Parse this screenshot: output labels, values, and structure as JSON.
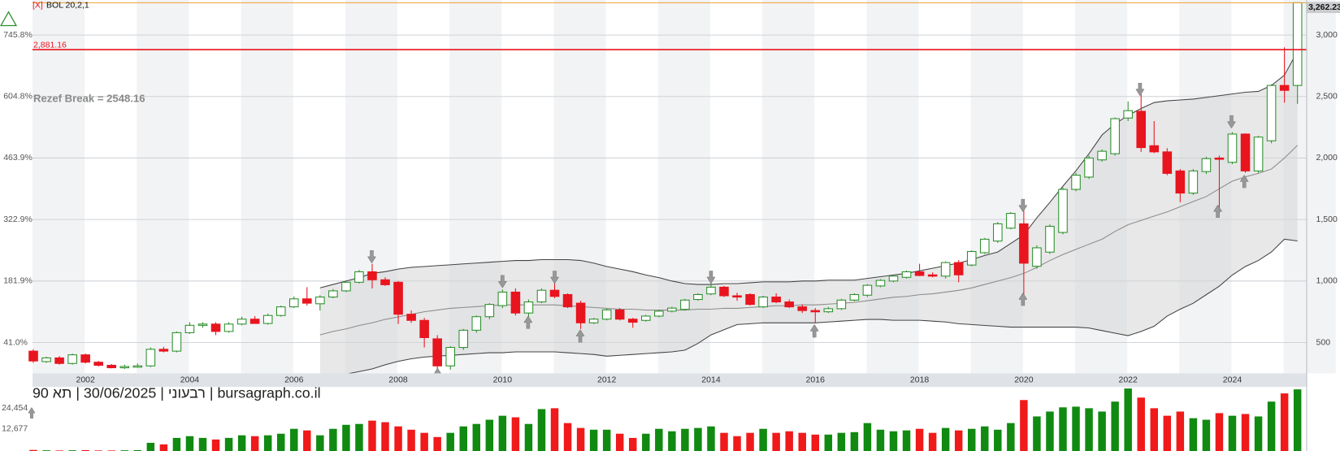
{
  "chart_data": {
    "type": "candlestick",
    "indicator_close": "[X]",
    "indicator_label": "BOL 20,2,1",
    "annotation": "Rezef Break = 2548.16",
    "footer": "רבעוני | 30/06/2025 | תא 90 | bursagraph.co.il",
    "categories": [
      null,
      null,
      null,
      null,
      "2002",
      null,
      null,
      null,
      null,
      null,
      null,
      null,
      "2004",
      null,
      null,
      null,
      null,
      null,
      null,
      null,
      "2006",
      null,
      null,
      null,
      null,
      null,
      null,
      null,
      "2008",
      null,
      null,
      null,
      null,
      null,
      null,
      null,
      "2010",
      null,
      null,
      null,
      null,
      null,
      null,
      null,
      "2012",
      null,
      null,
      null,
      null,
      null,
      null,
      null,
      "2014",
      null,
      null,
      null,
      null,
      null,
      null,
      null,
      "2016",
      null,
      null,
      null,
      null,
      null,
      null,
      null,
      "2018",
      null,
      null,
      null,
      null,
      null,
      null,
      null,
      "2020",
      null,
      null,
      null,
      null,
      null,
      null,
      null,
      "2022",
      null,
      null,
      null,
      null,
      null,
      null,
      null,
      "2024",
      null,
      null,
      null,
      null,
      null
    ],
    "open": [
      430,
      345,
      375,
      330,
      400,
      340,
      315,
      295,
      305,
      310,
      445,
      430,
      580,
      640,
      650,
      590,
      650,
      690,
      655,
      720,
      790,
      855,
      815,
      870,
      920,
      990,
      1075,
      1010,
      990,
      730,
      680,
      530,
      310,
      460,
      600,
      710,
      800,
      910,
      740,
      830,
      925,
      890,
      820,
      660,
      690,
      765,
      690,
      680,
      715,
      755,
      770,
      850,
      895,
      950,
      880,
      890,
      790,
      870,
      830,
      790,
      760,
      750,
      775,
      845,
      885,
      960,
      1000,
      1030,
      1075,
      1050,
      1040,
      1150,
      1130,
      1230,
      1325,
      1430,
      1465,
      1120,
      1235,
      1395,
      1745,
      1845,
      1985,
      2035,
      2325,
      2380,
      2100,
      2050,
      1895,
      1715,
      1890,
      2000,
      1965,
      2195,
      1895,
      2140,
      2590,
      2590
    ],
    "high": [
      445,
      385,
      390,
      410,
      410,
      350,
      325,
      320,
      330,
      460,
      465,
      590,
      665,
      665,
      665,
      665,
      710,
      715,
      735,
      800,
      875,
      950,
      885,
      935,
      1000,
      1090,
      1140,
      1030,
      1000,
      760,
      700,
      560,
      470,
      610,
      720,
      820,
      930,
      940,
      850,
      940,
      990,
      900,
      840,
      700,
      775,
      780,
      700,
      725,
      765,
      790,
      855,
      900,
      1000,
      960,
      905,
      900,
      880,
      900,
      850,
      810,
      780,
      790,
      855,
      900,
      975,
      1015,
      1050,
      1085,
      1140,
      1070,
      1160,
      1170,
      1250,
      1350,
      1480,
      1560,
      1580,
      1290,
      1460,
      1760,
      1880,
      2020,
      2070,
      2330,
      2460,
      2520,
      2300,
      2080,
      1910,
      1910,
      2010,
      2020,
      2210,
      2200,
      2180,
      2600,
      2900,
      3262.23
    ],
    "low": [
      335,
      335,
      320,
      320,
      330,
      305,
      290,
      285,
      295,
      300,
      420,
      420,
      570,
      620,
      560,
      580,
      640,
      660,
      645,
      710,
      780,
      800,
      760,
      860,
      910,
      980,
      940,
      960,
      650,
      660,
      460,
      260,
      280,
      440,
      580,
      690,
      780,
      720,
      660,
      820,
      860,
      780,
      610,
      650,
      680,
      680,
      620,
      670,
      705,
      745,
      760,
      840,
      885,
      870,
      840,
      800,
      780,
      820,
      780,
      740,
      660,
      740,
      765,
      835,
      870,
      950,
      990,
      1020,
      1040,
      1030,
      1020,
      990,
      1120,
      1220,
      1310,
      1420,
      890,
      1100,
      1220,
      1380,
      1730,
      1830,
      1970,
      2020,
      2300,
      2050,
      2040,
      1860,
      1640,
      1700,
      1870,
      1550,
      1950,
      1880,
      1880,
      2120,
      2450,
      2440
    ],
    "close": [
      350,
      375,
      330,
      400,
      340,
      315,
      295,
      305,
      310,
      445,
      430,
      580,
      640,
      650,
      590,
      650,
      690,
      655,
      720,
      790,
      855,
      820,
      870,
      920,
      990,
      1075,
      1010,
      970,
      730,
      680,
      540,
      310,
      460,
      600,
      710,
      810,
      910,
      740,
      830,
      925,
      875,
      790,
      660,
      690,
      765,
      690,
      665,
      715,
      755,
      780,
      845,
      890,
      950,
      880,
      870,
      810,
      870,
      830,
      790,
      760,
      750,
      775,
      845,
      890,
      965,
      1005,
      1040,
      1075,
      1045,
      1040,
      1150,
      1050,
      1240,
      1340,
      1465,
      1550,
      1145,
      1270,
      1445,
      1745,
      1860,
      2000,
      2055,
      2320,
      2385,
      2085,
      2050,
      1875,
      1715,
      1895,
      1995,
      1995,
      2195,
      1895,
      2170,
      2590,
      2550,
      3262.23
    ],
    "colors": {
      "up": "#2b8f2b",
      "down": "#e8141e"
    },
    "bollinger": {
      "upper": [
        null,
        null,
        null,
        null,
        null,
        null,
        null,
        null,
        null,
        null,
        null,
        null,
        null,
        null,
        null,
        null,
        null,
        null,
        null,
        null,
        null,
        null,
        944,
        972,
        1000,
        1028,
        1062,
        1076,
        1097,
        1111,
        1118,
        1125,
        1132,
        1139,
        1146,
        1153,
        1160,
        1167,
        1167,
        1174,
        1174,
        1174,
        1167,
        1146,
        1118,
        1097,
        1076,
        1049,
        1028,
        1000,
        979,
        972,
        972,
        979,
        979,
        986,
        993,
        993,
        993,
        1000,
        1000,
        1007,
        1007,
        1007,
        1021,
        1035,
        1049,
        1062,
        1083,
        1104,
        1125,
        1146,
        1174,
        1208,
        1236,
        1306,
        1375,
        1514,
        1639,
        1771,
        1896,
        2035,
        2187,
        2278,
        2347,
        2403,
        2451,
        2465,
        2472,
        2479,
        2493,
        2507,
        2521,
        2535,
        2542,
        2590,
        2674,
        2868
      ],
      "middle": [
        null,
        null,
        null,
        null,
        null,
        null,
        null,
        null,
        null,
        null,
        null,
        null,
        null,
        null,
        null,
        null,
        null,
        null,
        null,
        null,
        null,
        null,
        562,
        590,
        611,
        639,
        660,
        688,
        708,
        729,
        750,
        764,
        778,
        785,
        792,
        799,
        806,
        806,
        806,
        806,
        806,
        799,
        792,
        785,
        778,
        771,
        771,
        764,
        764,
        764,
        764,
        771,
        771,
        778,
        778,
        785,
        792,
        799,
        799,
        806,
        806,
        812,
        819,
        826,
        840,
        854,
        868,
        875,
        889,
        896,
        910,
        924,
        944,
        972,
        1000,
        1028,
        1062,
        1111,
        1167,
        1215,
        1257,
        1299,
        1340,
        1403,
        1458,
        1493,
        1528,
        1562,
        1604,
        1646,
        1687,
        1750,
        1812,
        1847,
        1875,
        1910,
        2000,
        2104
      ],
      "lower": [
        null,
        null,
        null,
        null,
        null,
        null,
        null,
        null,
        null,
        null,
        null,
        null,
        null,
        null,
        null,
        null,
        null,
        null,
        null,
        null,
        null,
        null,
        194,
        215,
        243,
        264,
        285,
        319,
        347,
        368,
        382,
        389,
        396,
        403,
        410,
        417,
        417,
        424,
        424,
        424,
        424,
        417,
        410,
        403,
        389,
        396,
        403,
        410,
        417,
        424,
        438,
        493,
        562,
        604,
        646,
        653,
        660,
        660,
        660,
        660,
        660,
        667,
        674,
        681,
        688,
        688,
        681,
        681,
        681,
        674,
        667,
        653,
        646,
        639,
        632,
        625,
        625,
        625,
        625,
        625,
        625,
        618,
        597,
        576,
        556,
        590,
        632,
        715,
        771,
        819,
        889,
        958,
        1049,
        1118,
        1167,
        1236,
        1340,
        1326
      ]
    },
    "ylim": [
      250,
      3275
    ],
    "yticks": [
      500,
      {
        "value": 1000,
        "label": "1,000"
      },
      {
        "value": 1500,
        "label": "1,500"
      },
      {
        "value": 2000,
        "label": "2,000"
      },
      {
        "value": 2500,
        "label": "2,500"
      },
      {
        "value": 3000,
        "label": "3,000"
      }
    ],
    "y2lim": [
      -29.5,
      823.3
    ],
    "y2ticks": [
      {
        "value": 41.0,
        "label": "41.0%"
      },
      {
        "value": 181.9,
        "label": "181.9%"
      },
      {
        "value": 322.9,
        "label": "322.9%"
      },
      {
        "value": 463.9,
        "label": "463.9%"
      },
      {
        "value": 604.8,
        "label": "604.8%"
      },
      {
        "value": 745.8,
        "label": "745.8%"
      }
    ],
    "grid": true,
    "last_price": {
      "value": 3262.23,
      "label": "3,262.23",
      "color": "#f0a030"
    },
    "reference_line": {
      "value": 2881.16,
      "label": "2,881.16",
      "color": "#e8141e"
    },
    "volume": {
      "values": [
        600,
        400,
        300,
        400,
        500,
        300,
        300,
        400,
        500,
        4700,
        3800,
        7500,
        8500,
        7500,
        6600,
        7500,
        9000,
        8500,
        9000,
        9900,
        12700,
        11800,
        9000,
        12700,
        15000,
        15500,
        17400,
        16500,
        14100,
        12200,
        10400,
        8000,
        10400,
        14100,
        15500,
        17900,
        20200,
        19300,
        15500,
        24000,
        24500,
        16000,
        13200,
        12200,
        12200,
        9900,
        7500,
        9900,
        12700,
        11300,
        12700,
        13200,
        14100,
        10400,
        8500,
        10400,
        12700,
        10400,
        11300,
        10400,
        9400,
        9400,
        10400,
        10800,
        16000,
        12200,
        11300,
        11800,
        12700,
        10400,
        13200,
        11800,
        12700,
        14100,
        12200,
        16000,
        29200,
        19800,
        22600,
        25000,
        25400,
        24500,
        22600,
        28300,
        35800,
        30600,
        24500,
        20200,
        22600,
        18800,
        17900,
        21700,
        20200,
        21200,
        19800,
        28300,
        33000,
        35300
      ],
      "ylim": [
        0,
        36700
      ],
      "yticks": [
        {
          "value": 12677,
          "label": "12,677"
        },
        {
          "value": 24454,
          "label": "24,454"
        }
      ]
    }
  }
}
